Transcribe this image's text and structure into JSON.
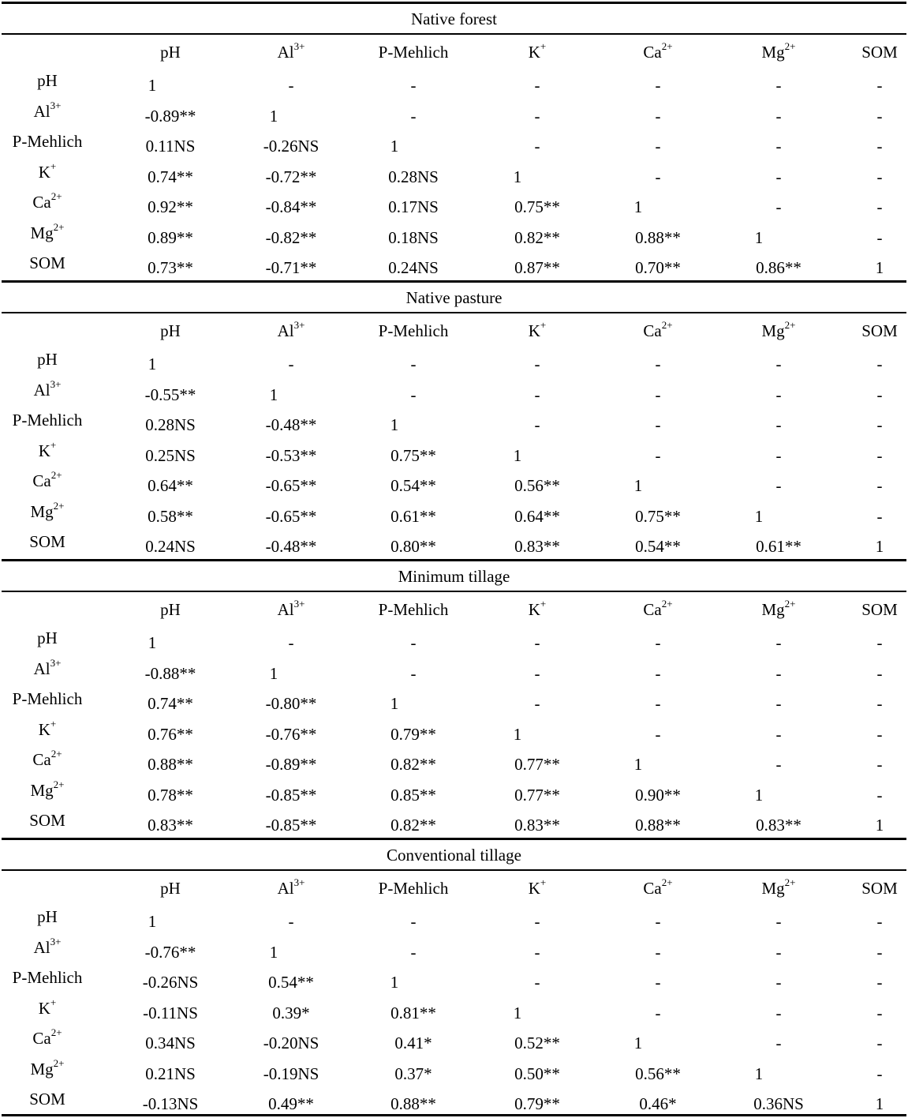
{
  "variables": [
    "pH",
    "Al3+",
    "P-Mehlich",
    "K+",
    "Ca2+",
    "Mg2+",
    "SOM"
  ],
  "variable_labels": [
    {
      "base": "pH",
      "sup": ""
    },
    {
      "base": "Al",
      "sup": "3+"
    },
    {
      "base": "P-Mehlich",
      "sup": ""
    },
    {
      "base": "K",
      "sup": "+"
    },
    {
      "base": "Ca",
      "sup": "2+"
    },
    {
      "base": "Mg",
      "sup": "2+"
    },
    {
      "base": "SOM",
      "sup": ""
    }
  ],
  "sections": [
    {
      "title": "Native forest",
      "rows": [
        [
          "1",
          "-",
          "-",
          "-",
          "-",
          "-",
          "-"
        ],
        [
          "-0.89**",
          "1",
          "-",
          "-",
          "-",
          "-",
          "-"
        ],
        [
          "0.11NS",
          "-0.26NS",
          "1",
          "-",
          "-",
          "-",
          "-"
        ],
        [
          "0.74**",
          "-0.72**",
          "0.28NS",
          "1",
          "-",
          "-",
          "-"
        ],
        [
          "0.92**",
          "-0.84**",
          "0.17NS",
          "0.75**",
          "1",
          "-",
          "-"
        ],
        [
          "0.89**",
          "-0.82**",
          "0.18NS",
          "0.82**",
          "0.88**",
          "1",
          "-"
        ],
        [
          "0.73**",
          "-0.71**",
          "0.24NS",
          "0.87**",
          "0.70**",
          "0.86**",
          "1"
        ]
      ]
    },
    {
      "title": "Native pasture",
      "rows": [
        [
          "1",
          "-",
          "-",
          "-",
          "-",
          "-",
          "-"
        ],
        [
          "-0.55**",
          "1",
          "-",
          "-",
          "-",
          "-",
          "-"
        ],
        [
          "0.28NS",
          "-0.48**",
          "1",
          "-",
          "-",
          "-",
          "-"
        ],
        [
          "0.25NS",
          "-0.53**",
          "0.75**",
          "1",
          "-",
          "-",
          "-"
        ],
        [
          "0.64**",
          "-0.65**",
          "0.54**",
          "0.56**",
          "1",
          "-",
          "-"
        ],
        [
          "0.58**",
          "-0.65**",
          "0.61**",
          "0.64**",
          "0.75**",
          "1",
          "-"
        ],
        [
          "0.24NS",
          "-0.48**",
          "0.80**",
          "0.83**",
          "0.54**",
          "0.61**",
          "1"
        ]
      ]
    },
    {
      "title": "Minimum tillage",
      "rows": [
        [
          "1",
          "-",
          "-",
          "-",
          "-",
          "-",
          "-"
        ],
        [
          "-0.88**",
          "1",
          "-",
          "-",
          "-",
          "-",
          "-"
        ],
        [
          "0.74**",
          "-0.80**",
          "1",
          "-",
          "-",
          "-",
          "-"
        ],
        [
          "0.76**",
          "-0.76**",
          "0.79**",
          "1",
          "-",
          "-",
          "-"
        ],
        [
          "0.88**",
          "-0.89**",
          "0.82**",
          "0.77**",
          "1",
          "-",
          "-"
        ],
        [
          "0.78**",
          "-0.85**",
          "0.85**",
          "0.77**",
          "0.90**",
          "1",
          "-"
        ],
        [
          "0.83**",
          "-0.85**",
          "0.82**",
          "0.83**",
          "0.88**",
          "0.83**",
          "1"
        ]
      ]
    },
    {
      "title": "Conventional tillage",
      "rows": [
        [
          "1",
          "-",
          "-",
          "-",
          "-",
          "-",
          "-"
        ],
        [
          "-0.76**",
          "1",
          "-",
          "-",
          "-",
          "-",
          "-"
        ],
        [
          "-0.26NS",
          "0.54**",
          "1",
          "-",
          "-",
          "-",
          "-"
        ],
        [
          "-0.11NS",
          "0.39*",
          "0.81**",
          "1",
          "-",
          "-",
          "-"
        ],
        [
          "0.34NS",
          "-0.20NS",
          "0.41*",
          "0.52**",
          "1",
          "-",
          "-"
        ],
        [
          "0.21NS",
          "-0.19NS",
          "0.37*",
          "0.50**",
          "0.56**",
          "1",
          "-"
        ],
        [
          "-0.13NS",
          "0.49**",
          "0.88**",
          "0.79**",
          "0.46*",
          "0.36NS",
          "1"
        ]
      ]
    }
  ]
}
